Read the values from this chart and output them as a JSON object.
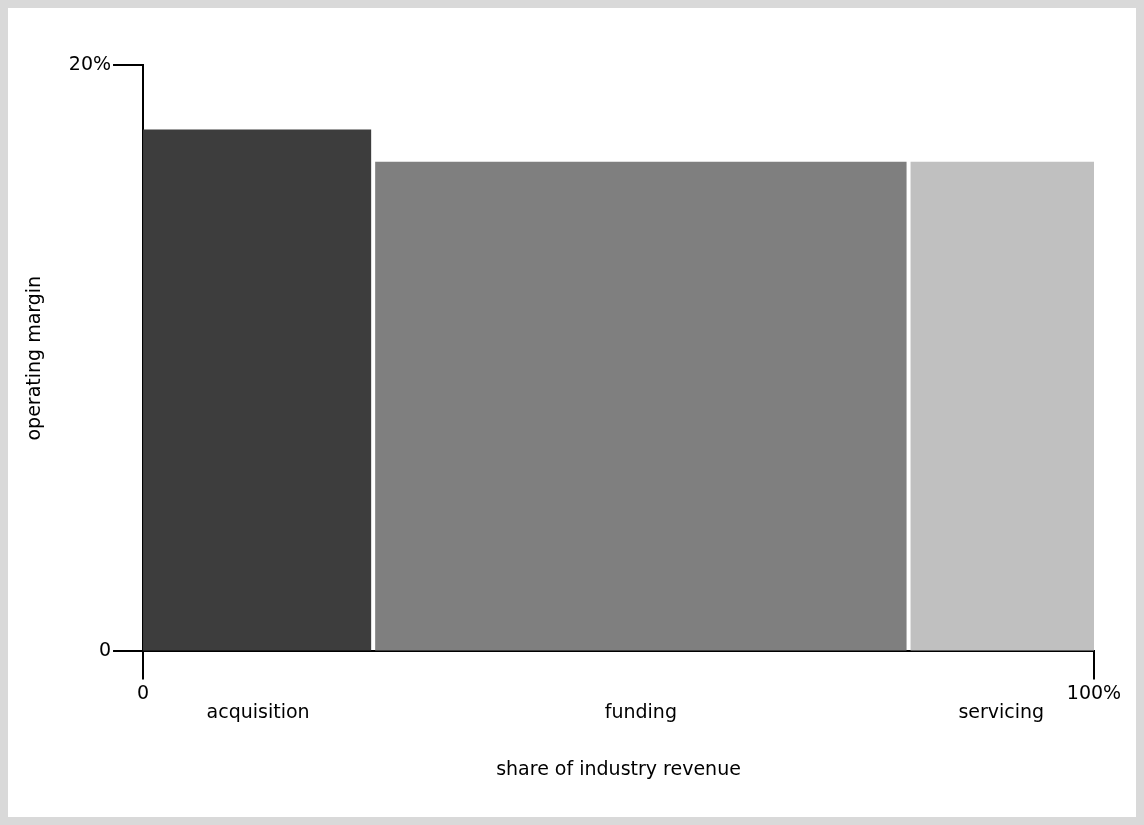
{
  "chart_data": {
    "type": "histogram",
    "xlabel": "share of industry revenue",
    "ylabel": "operating margin",
    "bins": [
      0,
      24.2,
      80.5,
      100
    ],
    "values": [
      17.8,
      16.7,
      16.7
    ],
    "categories": [
      "acquisition",
      "funding",
      "servicing"
    ],
    "colors": [
      "#3d3d3d",
      "#7f7f7f",
      "#c0c0c0"
    ],
    "xlim": [
      0,
      100
    ],
    "ylim": [
      0,
      20
    ],
    "xticks": [
      {
        "value": 0,
        "label": "0"
      },
      {
        "value": 100,
        "label": "100%"
      }
    ],
    "yticks": [
      0,
      {
        "value": 20,
        "label": "20%"
      }
    ],
    "grid": false,
    "legend": false
  }
}
